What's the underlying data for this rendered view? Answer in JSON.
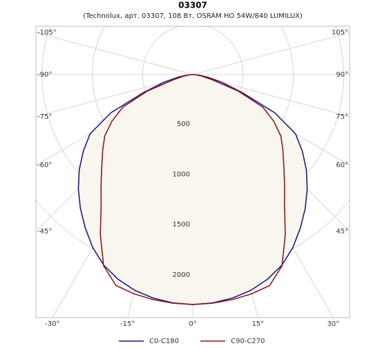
{
  "chart_data": {
    "type": "polar",
    "title": "03307",
    "subtitle": "(Technolux, арт. 03307, 108 Вт, OSRAM HO 54W/840 LUMILUX)",
    "angles": [
      -90,
      -85,
      -80,
      -75,
      -70,
      -65,
      -60,
      -55,
      -50,
      -45,
      -40,
      -35,
      -30,
      -25,
      -20,
      -15,
      -10,
      -5,
      0,
      5,
      10,
      15,
      20,
      25,
      30,
      35,
      40,
      45,
      50,
      55,
      60,
      65,
      70,
      75,
      80,
      85,
      90
    ],
    "series": [
      {
        "name": "C0-C180",
        "color": "#1c1c80",
        "values": [
          0,
          60,
          150,
          300,
          520,
          900,
          1180,
          1330,
          1475,
          1610,
          1740,
          1865,
          1990,
          2095,
          2170,
          2225,
          2260,
          2282,
          2290,
          2282,
          2260,
          2225,
          2170,
          2095,
          1990,
          1865,
          1740,
          1610,
          1475,
          1330,
          1180,
          900,
          520,
          300,
          150,
          60,
          0
        ]
      },
      {
        "name": "C90-C270",
        "color": "#8b1a1a",
        "values": [
          0,
          30,
          90,
          200,
          480,
          770,
          930,
          1070,
          1170,
          1280,
          1420,
          1590,
          1840,
          2100,
          2235,
          2260,
          2275,
          2285,
          2290,
          2285,
          2275,
          2260,
          2235,
          2100,
          1840,
          1590,
          1420,
          1280,
          1170,
          1070,
          930,
          770,
          480,
          200,
          90,
          30,
          0
        ]
      }
    ],
    "fill_color": "#f9f6ef",
    "rlim": [
      0,
      2420
    ],
    "rticks": [
      500,
      1000,
      1500,
      2000
    ],
    "angle_ticks": [
      {
        "value": -105,
        "label": "-105°"
      },
      {
        "value": -90,
        "label": "-90°"
      },
      {
        "value": -75,
        "label": "-75°"
      },
      {
        "value": -60,
        "label": "-60°"
      },
      {
        "value": -45,
        "label": "-45°"
      },
      {
        "value": -30,
        "label": "-30°"
      },
      {
        "value": -15,
        "label": "-15°"
      },
      {
        "value": 0,
        "label": "0°"
      },
      {
        "value": 15,
        "label": "15°"
      },
      {
        "value": 30,
        "label": "30°"
      },
      {
        "value": 45,
        "label": "45°"
      },
      {
        "value": 60,
        "label": "60°"
      },
      {
        "value": 75,
        "label": "75°"
      },
      {
        "value": 90,
        "label": "90°"
      },
      {
        "value": 105,
        "label": "105°"
      }
    ],
    "grid": true
  }
}
